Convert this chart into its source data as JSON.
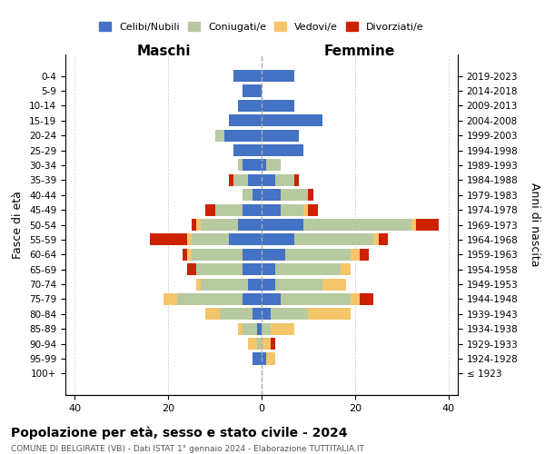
{
  "age_groups": [
    "100+",
    "95-99",
    "90-94",
    "85-89",
    "80-84",
    "75-79",
    "70-74",
    "65-69",
    "60-64",
    "55-59",
    "50-54",
    "45-49",
    "40-44",
    "35-39",
    "30-34",
    "25-29",
    "20-24",
    "15-19",
    "10-14",
    "5-9",
    "0-4"
  ],
  "birth_years": [
    "≤ 1923",
    "1924-1928",
    "1929-1933",
    "1934-1938",
    "1939-1943",
    "1944-1948",
    "1949-1953",
    "1954-1958",
    "1959-1963",
    "1964-1968",
    "1969-1973",
    "1974-1978",
    "1979-1983",
    "1984-1988",
    "1989-1993",
    "1994-1998",
    "1999-2003",
    "2004-2008",
    "2009-2013",
    "2014-2018",
    "2019-2023"
  ],
  "maschi": {
    "celibi": [
      0,
      2,
      0,
      1,
      2,
      4,
      3,
      4,
      4,
      7,
      5,
      4,
      2,
      3,
      4,
      6,
      8,
      7,
      5,
      4,
      6
    ],
    "coniugati": [
      0,
      0,
      1,
      3,
      7,
      14,
      10,
      10,
      11,
      8,
      8,
      6,
      2,
      3,
      1,
      0,
      2,
      0,
      0,
      0,
      0
    ],
    "vedovi": [
      0,
      0,
      2,
      1,
      3,
      3,
      1,
      0,
      1,
      1,
      1,
      0,
      0,
      0,
      0,
      0,
      0,
      0,
      0,
      0,
      0
    ],
    "divorziati": [
      0,
      0,
      0,
      0,
      0,
      0,
      0,
      2,
      1,
      8,
      1,
      2,
      0,
      1,
      0,
      0,
      0,
      0,
      0,
      0,
      0
    ]
  },
  "femmine": {
    "nubili": [
      0,
      1,
      0,
      0,
      2,
      4,
      3,
      3,
      5,
      7,
      9,
      4,
      4,
      3,
      1,
      9,
      8,
      13,
      7,
      0,
      7
    ],
    "coniugate": [
      0,
      0,
      0,
      2,
      8,
      15,
      10,
      14,
      14,
      17,
      23,
      5,
      6,
      4,
      3,
      0,
      0,
      0,
      0,
      0,
      0
    ],
    "vedove": [
      0,
      2,
      2,
      5,
      9,
      2,
      5,
      2,
      2,
      1,
      1,
      1,
      0,
      0,
      0,
      0,
      0,
      0,
      0,
      0,
      0
    ],
    "divorziate": [
      0,
      0,
      1,
      0,
      0,
      3,
      0,
      0,
      2,
      2,
      5,
      2,
      1,
      1,
      0,
      0,
      0,
      0,
      0,
      0,
      0
    ]
  },
  "color_celibi": "#4472c4",
  "color_coniugati": "#b7c9a0",
  "color_vedovi": "#f5c56a",
  "color_divorziati": "#cc2200",
  "title": "Popolazione per età, sesso e stato civile - 2024",
  "subtitle": "COMUNE DI BELGIRATE (VB) - Dati ISTAT 1° gennaio 2024 - Elaborazione TUTTITALIA.IT",
  "ylabel": "Fasce di età",
  "ylabel_right": "Anni di nascita",
  "xlabel_left": "Maschi",
  "xlabel_right": "Femmine",
  "xlim": 42,
  "bg_color": "#ffffff",
  "grid_color": "#cccccc"
}
